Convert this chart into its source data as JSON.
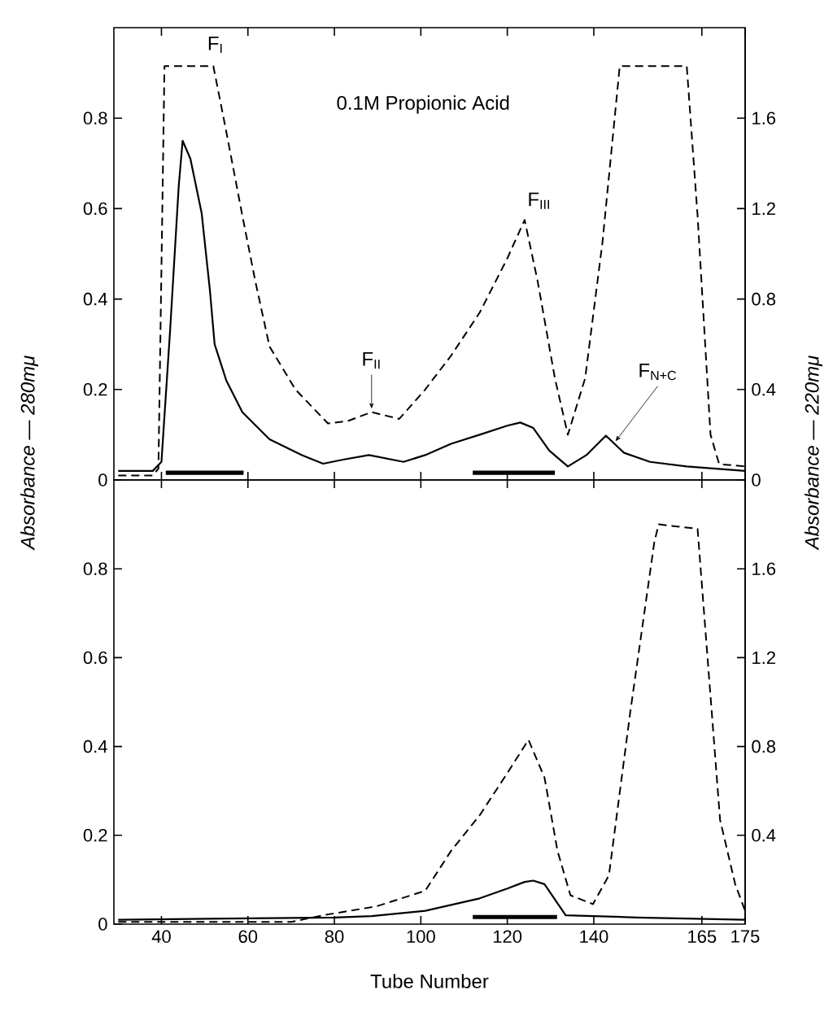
{
  "chart_data": [
    {
      "type": "line",
      "ylabel": "Absorbance — 280mμ",
      "y2label": "Absorbance — 220mμ",
      "annotations": [
        "0.1M Propionic Acid",
        {
          "text": "F$_{I}$",
          "x": 51,
          "y": 0.92
        },
        {
          "text": "F$_{II}$",
          "x": 88.6,
          "y": 0.15
        },
        {
          "text": "F$_{III}$",
          "x": 124,
          "y": 0.575
        },
        {
          "text": "F$_{N+C}$",
          "x": 145,
          "y": 0.078
        }
      ],
      "xlim": [
        29,
        175
      ],
      "ylim": [
        0,
        1.0
      ],
      "y2lim": [
        0,
        2.0
      ],
      "xticks": [
        40,
        60,
        80,
        100,
        120,
        140,
        165,
        175
      ],
      "yticks": [
        0,
        0.2,
        0.4,
        0.6,
        0.8
      ],
      "y2ticks": [
        0,
        0.4,
        0.8,
        1.2,
        1.6
      ],
      "tick_labels": "y",
      "marker": "none",
      "series": [
        {
          "color": "#000000",
          "line_style": "solid",
          "x": [
            30,
            38,
            40,
            42,
            44,
            44.9,
            46.7,
            49.3,
            51.2,
            52.3,
            55,
            58.7,
            65,
            72.5,
            77.4,
            82,
            88,
            96,
            101,
            107,
            113.6,
            120,
            123,
            126,
            129.7,
            134,
            138.3,
            142.8,
            147,
            153,
            161.5,
            175
          ],
          "values": [
            0.02,
            0.02,
            0.04,
            0.33,
            0.65,
            0.75,
            0.71,
            0.59,
            0.42,
            0.3,
            0.22,
            0.15,
            0.09,
            0.055,
            0.036,
            0.045,
            0.055,
            0.04,
            0.055,
            0.08,
            0.1,
            0.12,
            0.127,
            0.115,
            0.065,
            0.03,
            0.055,
            0.098,
            0.06,
            0.04,
            0.03,
            0.02
          ]
        },
        {
          "color": "#000000",
          "line_style": "solid",
          "x": [
            41,
            59
          ],
          "values": [
            0.016,
            0.016
          ]
        },
        {
          "color": "#000000",
          "line_style": "solid",
          "x": [
            112,
            131
          ],
          "values": [
            0.016,
            0.016
          ]
        },
        {
          "color": "#000000",
          "line_style": "dashed",
          "axis": "y2",
          "x": [
            30,
            38,
            39.3,
            40.7,
            52,
            55,
            58.7,
            61.7,
            65,
            71,
            78.5,
            83,
            88.6,
            95,
            101,
            107,
            113.6,
            120,
            124,
            127,
            131,
            134,
            138,
            142,
            146,
            161.5,
            164,
            167,
            169,
            175
          ],
          "values": [
            0.02,
            0.02,
            0.05,
            1.83,
            1.83,
            1.54,
            1.17,
            0.88,
            0.59,
            0.4,
            0.25,
            0.26,
            0.3,
            0.27,
            0.4,
            0.55,
            0.74,
            0.98,
            1.15,
            0.88,
            0.45,
            0.2,
            0.45,
            1.05,
            1.83,
            1.83,
            1.17,
            0.2,
            0.07,
            0.06
          ]
        }
      ]
    },
    {
      "type": "line",
      "xlabel": "Tube Number",
      "xlim": [
        29,
        175
      ],
      "ylim": [
        0,
        1.0
      ],
      "y2lim": [
        0,
        2.0
      ],
      "xticks": [
        40,
        60,
        80,
        100,
        120,
        140,
        165,
        175
      ],
      "yticks": [
        0,
        0.2,
        0.4,
        0.6,
        0.8
      ],
      "y2ticks": [
        0.4,
        0.8,
        1.2,
        1.6
      ],
      "series": [
        {
          "color": "#000000",
          "line_style": "solid",
          "x": [
            30,
            80,
            88.6,
            101,
            113.6,
            120,
            124,
            126,
            128.6,
            133.5,
            150,
            175
          ],
          "values": [
            0.01,
            0.015,
            0.018,
            0.03,
            0.058,
            0.08,
            0.095,
            0.098,
            0.09,
            0.02,
            0.015,
            0.01
          ]
        },
        {
          "color": "#000000",
          "line_style": "solid",
          "x": [
            112,
            131.5
          ],
          "values": [
            0.016,
            0.016
          ]
        },
        {
          "color": "#000000",
          "line_style": "dashed",
          "axis": "y2",
          "x": [
            30,
            70,
            77.4,
            89.7,
            101,
            107,
            113.6,
            120,
            124.9,
            128.6,
            131.6,
            134.6,
            139.8,
            143.5,
            148.4,
            154,
            155,
            164,
            167.3,
            169.2,
            172.7,
            175
          ],
          "values": [
            0.01,
            0.01,
            0.04,
            0.08,
            0.15,
            0.33,
            0.49,
            0.68,
            0.83,
            0.66,
            0.33,
            0.13,
            0.09,
            0.22,
            0.95,
            1.72,
            1.8,
            1.78,
            0.95,
            0.47,
            0.18,
            0.06
          ]
        }
      ],
      "marker": "none"
    }
  ]
}
